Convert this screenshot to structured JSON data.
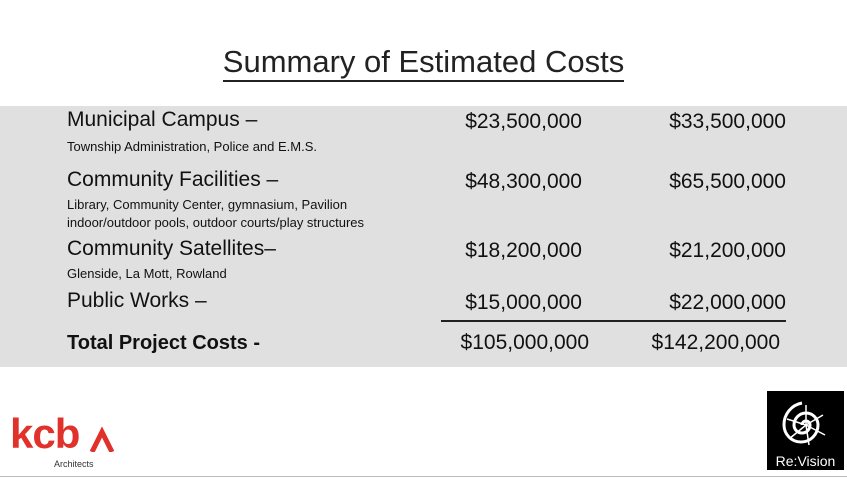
{
  "title": "Summary of Estimated Costs",
  "rows": [
    {
      "label": "Municipal Campus –",
      "sub": [
        "Township Administration, Police and E.M.S."
      ],
      "low": "$23,500,000",
      "high": "$33,500,000"
    },
    {
      "label": "Community Facilities –",
      "sub": [
        "Library, Community Center, gymnasium, Pavilion",
        "indoor/outdoor pools, outdoor courts/play structures"
      ],
      "low": "$48,300,000",
      "high": "$65,500,000"
    },
    {
      "label": "Community Satellites–",
      "sub": [
        "Glenside, La Mott, Rowland"
      ],
      "low": "$18,200,000",
      "high": "$21,200,000"
    },
    {
      "label": "Public Works –",
      "sub": [],
      "low": "$15,000,000",
      "high": "$22,000,000"
    }
  ],
  "total": {
    "label": "Total Project Costs -",
    "low": "$105,000,000",
    "high": "$142,200,000"
  },
  "logos": {
    "kcba": {
      "word": "kcb",
      "sub": "Architects",
      "color": "#e0312a"
    },
    "revision": {
      "text": "Re:Vision"
    }
  }
}
